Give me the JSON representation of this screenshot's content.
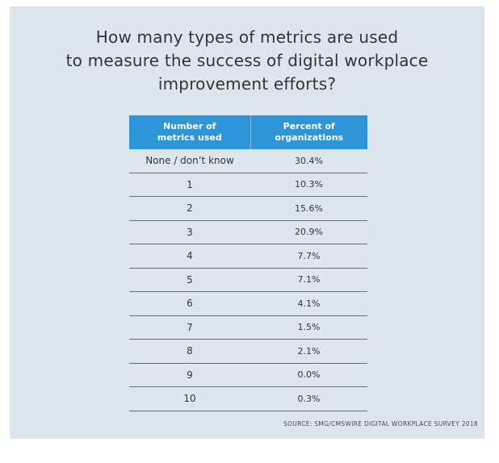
{
  "title_lines": [
    "How many types of metrics are used",
    "to measure the success of digital workplace",
    "improvement efforts?"
  ],
  "source": "SOURCE: SMG/CMSWIRE DIGITAL WORKPLACE SURVEY 2018",
  "colors": {
    "header_bg": "#2e95d8",
    "panel_bg": "#dde6ee",
    "text": "#333333"
  },
  "chart_data": {
    "type": "table",
    "title": "How many types of metrics are used to measure the success of digital workplace improvement efforts?",
    "columns": [
      "Number of metrics used",
      "Percent of organizations"
    ],
    "header_lines": [
      [
        "Number of",
        "metrics used"
      ],
      [
        "Percent of",
        "organizations"
      ]
    ],
    "rows": [
      [
        "None / don’t know",
        "30.4%"
      ],
      [
        "1",
        "10.3%"
      ],
      [
        "2",
        "15.6%"
      ],
      [
        "3",
        "20.9%"
      ],
      [
        "4",
        "7.7%"
      ],
      [
        "5",
        "7.1%"
      ],
      [
        "6",
        "4.1%"
      ],
      [
        "7",
        "1.5%"
      ],
      [
        "8",
        "2.1%"
      ],
      [
        "9",
        "0.0%"
      ],
      [
        "10",
        "0.3%"
      ]
    ]
  }
}
